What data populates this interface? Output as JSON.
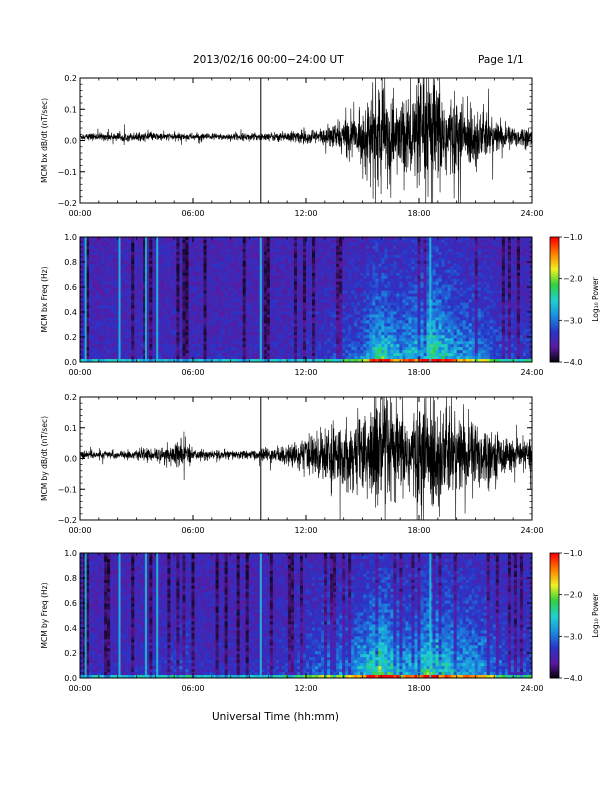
{
  "header": {
    "title": "2013/02/16  00:00−24:00 UT",
    "page": "Page 1/1"
  },
  "chart_data": [
    {
      "type": "line",
      "ylabel": "MCM bx dB/dt (nT/sec)",
      "ylim": [
        -0.2,
        0.2
      ],
      "yticks": [
        "0.2",
        "0.1",
        "0.0",
        "−0.1",
        "−0.2"
      ],
      "xlim": [
        0,
        24
      ],
      "xticks": [
        "00:00",
        "06:00",
        "12:00",
        "18:00",
        "24:00"
      ],
      "marker_time_h": 9.6,
      "activity_profile": {
        "hours": [
          0,
          3,
          6,
          9,
          10,
          11,
          12,
          13,
          14,
          15,
          15.8,
          16.5,
          17,
          18,
          18.6,
          19,
          20,
          21,
          22,
          23,
          24
        ],
        "amplitude": [
          0.01,
          0.012,
          0.01,
          0.01,
          0.012,
          0.015,
          0.02,
          0.025,
          0.05,
          0.07,
          0.17,
          0.12,
          0.1,
          0.14,
          0.2,
          0.16,
          0.1,
          0.09,
          0.05,
          0.03,
          0.03
        ]
      }
    },
    {
      "type": "heatmap",
      "ylabel": "MCM bx Freq (Hz)",
      "ylim": [
        0.0,
        1.0
      ],
      "yticks": [
        "1.0",
        "0.8",
        "0.6",
        "0.4",
        "0.2",
        "0.0"
      ],
      "xlim": [
        0,
        24
      ],
      "xticks": [
        "00:00",
        "06:00",
        "12:00",
        "18:00",
        "24:00"
      ],
      "colorbar": {
        "label": "Log₁₀ Power",
        "range": [
          -4.0,
          -1.0
        ],
        "ticks": [
          "−1.0",
          "−2.0",
          "−3.0",
          "−4.0"
        ]
      },
      "colormap": [
        "#000000",
        "#5a1aa0",
        "#2a34c8",
        "#1a8ce0",
        "#20d0d0",
        "#30d040",
        "#f0f020",
        "#ff8000",
        "#ff0000"
      ],
      "bright_lines_h": [
        0.3,
        2.1,
        3.5,
        4.1,
        9.6,
        18.6
      ]
    },
    {
      "type": "line",
      "ylabel": "MCM by dB/dt (nT/sec)",
      "ylim": [
        -0.2,
        0.2
      ],
      "yticks": [
        "0.2",
        "0.1",
        "0.0",
        "−0.1",
        "−0.2"
      ],
      "xlim": [
        0,
        24
      ],
      "xticks": [
        "00:00",
        "06:00",
        "12:00",
        "18:00",
        "24:00"
      ],
      "marker_time_h": 9.6,
      "activity_profile": {
        "hours": [
          0,
          3,
          5,
          5.5,
          6,
          9,
          10,
          11,
          12,
          13,
          14,
          15,
          15.8,
          16.5,
          17,
          18,
          18.6,
          19,
          20,
          21,
          22,
          23,
          24
        ],
        "amplitude": [
          0.012,
          0.012,
          0.03,
          0.05,
          0.015,
          0.012,
          0.02,
          0.03,
          0.05,
          0.08,
          0.09,
          0.12,
          0.2,
          0.15,
          0.12,
          0.14,
          0.2,
          0.16,
          0.12,
          0.11,
          0.07,
          0.04,
          0.04
        ]
      }
    },
    {
      "type": "heatmap",
      "ylabel": "MCM by Freq (Hz)",
      "ylim": [
        0.0,
        1.0
      ],
      "yticks": [
        "1.0",
        "0.8",
        "0.6",
        "0.4",
        "0.2",
        "0.0"
      ],
      "xlim": [
        0,
        24
      ],
      "xticks": [
        "00:00",
        "06:00",
        "12:00",
        "18:00",
        "24:00"
      ],
      "colorbar": {
        "label": "Log₁₀ Power",
        "range": [
          -4.0,
          -1.0
        ],
        "ticks": [
          "−1.0",
          "−2.0",
          "−3.0",
          "−4.0"
        ]
      },
      "colormap": [
        "#000000",
        "#5a1aa0",
        "#2a34c8",
        "#1a8ce0",
        "#20d0d0",
        "#30d040",
        "#f0f020",
        "#ff8000",
        "#ff0000"
      ],
      "bright_lines_h": [
        0.3,
        2.1,
        3.5,
        4.1,
        9.6,
        18.6
      ]
    }
  ],
  "xlabel": "Universal Time (hh:mm)"
}
